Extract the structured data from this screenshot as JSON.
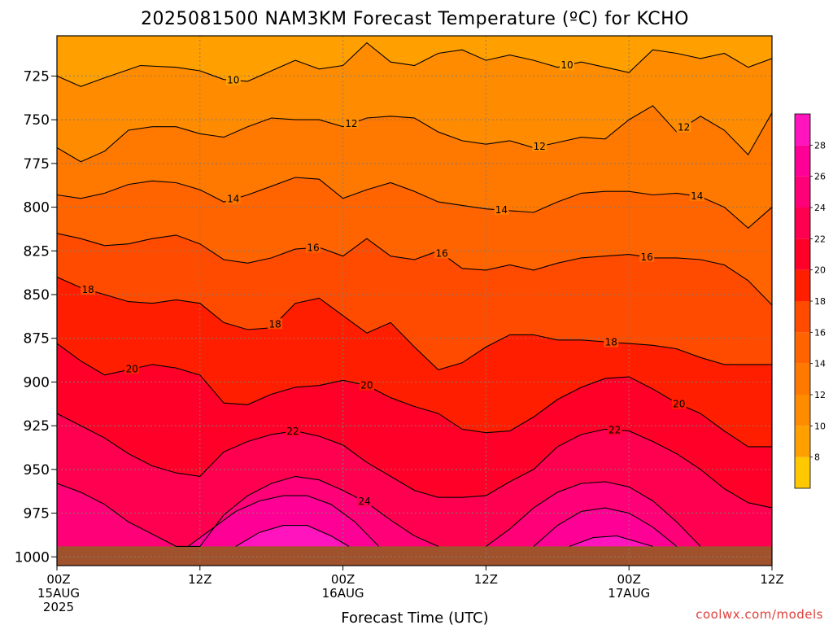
{
  "chart_data": {
    "type": "heatmap",
    "title": "2025081500 NAM3KM Forecast Temperature (ºC) for KCHO",
    "xlabel": "Forecast Time (UTC)",
    "ylabel": "",
    "credit": "coolwx.com/models",
    "x_range_hours": [
      0,
      60
    ],
    "x_ticks": [
      {
        "hour": 0,
        "line1": "00Z",
        "line2": "15AUG",
        "line3": "2025"
      },
      {
        "hour": 12,
        "line1": "12Z",
        "line2": "",
        "line3": ""
      },
      {
        "hour": 24,
        "line1": "00Z",
        "line2": "16AUG",
        "line3": ""
      },
      {
        "hour": 36,
        "line1": "12Z",
        "line2": "",
        "line3": ""
      },
      {
        "hour": 48,
        "line1": "00Z",
        "line2": "17AUG",
        "line3": ""
      },
      {
        "hour": 60,
        "line1": "12Z",
        "line2": "",
        "line3": ""
      }
    ],
    "y_axis": {
      "name": "pressure_hPa",
      "top": 702,
      "bottom": 1005
    },
    "y_ticks": [
      725,
      750,
      775,
      800,
      825,
      850,
      875,
      900,
      925,
      950,
      975,
      1000
    ],
    "grid": true,
    "colorbar": {
      "ticks": [
        8,
        10,
        12,
        14,
        16,
        18,
        20,
        22,
        24,
        26,
        28
      ],
      "levels": [
        6,
        8,
        10,
        12,
        14,
        16,
        18,
        20,
        22,
        24,
        26,
        28,
        30
      ],
      "colors": [
        "#ffc800",
        "#ffa000",
        "#ff8c00",
        "#ff7800",
        "#ff6400",
        "#ff4b00",
        "#ff1e00",
        "#ff0028",
        "#ff0050",
        "#ff0078",
        "#ff0096",
        "#ff14be"
      ]
    },
    "ground_level_hPa": 994,
    "ground_color": "#a0522d",
    "isotherms": [
      {
        "value": 10,
        "points": [
          [
            0,
            725
          ],
          [
            2,
            731
          ],
          [
            4,
            726
          ],
          [
            7,
            719
          ],
          [
            10,
            720
          ],
          [
            12,
            722
          ],
          [
            14,
            727
          ],
          [
            16,
            728
          ],
          [
            18,
            722
          ],
          [
            20,
            716
          ],
          [
            22,
            721
          ],
          [
            24,
            719
          ],
          [
            26,
            706
          ],
          [
            28,
            717
          ],
          [
            30,
            719
          ],
          [
            32,
            712
          ],
          [
            34,
            710
          ],
          [
            36,
            716
          ],
          [
            38,
            713
          ],
          [
            40,
            716
          ],
          [
            42,
            720
          ],
          [
            44,
            717
          ],
          [
            46,
            720
          ],
          [
            48,
            723
          ],
          [
            50,
            710
          ],
          [
            52,
            712
          ],
          [
            54,
            715
          ],
          [
            56,
            712
          ],
          [
            58,
            720
          ],
          [
            60,
            715
          ]
        ],
        "labels": [
          {
            "x": 14.8,
            "value": "10"
          },
          {
            "x": 42.8,
            "value": "10"
          }
        ]
      },
      {
        "value": 12,
        "points": [
          [
            0,
            766
          ],
          [
            2,
            774
          ],
          [
            4,
            768
          ],
          [
            6,
            756
          ],
          [
            8,
            754
          ],
          [
            10,
            754
          ],
          [
            12,
            758
          ],
          [
            14,
            760
          ],
          [
            16,
            754
          ],
          [
            18,
            749
          ],
          [
            20,
            750
          ],
          [
            22,
            750
          ],
          [
            24,
            754
          ],
          [
            26,
            749
          ],
          [
            28,
            748
          ],
          [
            30,
            749
          ],
          [
            32,
            757
          ],
          [
            34,
            762
          ],
          [
            36,
            764
          ],
          [
            38,
            762
          ],
          [
            40,
            766
          ],
          [
            42,
            763
          ],
          [
            44,
            760
          ],
          [
            46,
            761
          ],
          [
            48,
            750
          ],
          [
            50,
            742
          ],
          [
            52,
            757
          ],
          [
            54,
            748
          ],
          [
            56,
            756
          ],
          [
            58,
            770
          ],
          [
            60,
            746
          ]
        ],
        "labels": [
          {
            "x": 24.7,
            "value": "12"
          },
          {
            "x": 40.5,
            "value": "12"
          },
          {
            "x": 52.6,
            "value": "12"
          }
        ]
      },
      {
        "value": 14,
        "points": [
          [
            0,
            793
          ],
          [
            2,
            795
          ],
          [
            4,
            792
          ],
          [
            6,
            787
          ],
          [
            8,
            785
          ],
          [
            10,
            786
          ],
          [
            12,
            790
          ],
          [
            14,
            797
          ],
          [
            16,
            793
          ],
          [
            18,
            788
          ],
          [
            20,
            783
          ],
          [
            22,
            784
          ],
          [
            24,
            795
          ],
          [
            26,
            790
          ],
          [
            28,
            786
          ],
          [
            30,
            791
          ],
          [
            32,
            797
          ],
          [
            34,
            799
          ],
          [
            36,
            801
          ],
          [
            38,
            802
          ],
          [
            40,
            803
          ],
          [
            42,
            797
          ],
          [
            44,
            792
          ],
          [
            46,
            791
          ],
          [
            48,
            791
          ],
          [
            50,
            793
          ],
          [
            52,
            792
          ],
          [
            54,
            794
          ],
          [
            56,
            800
          ],
          [
            58,
            812
          ],
          [
            60,
            800
          ]
        ],
        "labels": [
          {
            "x": 14.8,
            "value": "14"
          },
          {
            "x": 37.3,
            "value": "14"
          },
          {
            "x": 53.7,
            "value": "14"
          }
        ]
      },
      {
        "value": 16,
        "points": [
          [
            0,
            815
          ],
          [
            2,
            818
          ],
          [
            4,
            822
          ],
          [
            6,
            821
          ],
          [
            8,
            818
          ],
          [
            10,
            816
          ],
          [
            12,
            821
          ],
          [
            14,
            830
          ],
          [
            16,
            832
          ],
          [
            18,
            829
          ],
          [
            20,
            824
          ],
          [
            22,
            823
          ],
          [
            24,
            828
          ],
          [
            26,
            818
          ],
          [
            28,
            828
          ],
          [
            30,
            830
          ],
          [
            32,
            825
          ],
          [
            34,
            835
          ],
          [
            36,
            836
          ],
          [
            38,
            833
          ],
          [
            40,
            836
          ],
          [
            42,
            832
          ],
          [
            44,
            829
          ],
          [
            46,
            828
          ],
          [
            48,
            827
          ],
          [
            50,
            829
          ],
          [
            52,
            829
          ],
          [
            54,
            830
          ],
          [
            56,
            833
          ],
          [
            58,
            842
          ],
          [
            60,
            856
          ]
        ],
        "labels": [
          {
            "x": 21.5,
            "value": "16"
          },
          {
            "x": 32.3,
            "value": "16"
          },
          {
            "x": 49.5,
            "value": "16"
          }
        ]
      },
      {
        "value": 18,
        "points": [
          [
            0,
            840
          ],
          [
            2,
            846
          ],
          [
            4,
            850
          ],
          [
            6,
            854
          ],
          [
            8,
            855
          ],
          [
            10,
            853
          ],
          [
            12,
            855
          ],
          [
            14,
            866
          ],
          [
            16,
            870
          ],
          [
            18,
            869
          ],
          [
            20,
            855
          ],
          [
            22,
            852
          ],
          [
            24,
            862
          ],
          [
            26,
            872
          ],
          [
            28,
            866
          ],
          [
            30,
            880
          ],
          [
            32,
            893
          ],
          [
            34,
            889
          ],
          [
            36,
            880
          ],
          [
            38,
            873
          ],
          [
            40,
            873
          ],
          [
            42,
            876
          ],
          [
            44,
            876
          ],
          [
            46,
            877
          ],
          [
            48,
            878
          ],
          [
            50,
            879
          ],
          [
            52,
            881
          ],
          [
            54,
            886
          ],
          [
            56,
            890
          ],
          [
            58,
            890
          ],
          [
            60,
            890
          ]
        ],
        "labels": [
          {
            "x": 2.6,
            "value": "18"
          },
          {
            "x": 18.3,
            "value": "18"
          },
          {
            "x": 46.5,
            "value": "18"
          }
        ]
      },
      {
        "value": 20,
        "points": [
          [
            0,
            878
          ],
          [
            2,
            888
          ],
          [
            4,
            896
          ],
          [
            6,
            893
          ],
          [
            8,
            890
          ],
          [
            10,
            892
          ],
          [
            12,
            896
          ],
          [
            14,
            912
          ],
          [
            16,
            913
          ],
          [
            18,
            907
          ],
          [
            20,
            903
          ],
          [
            22,
            902
          ],
          [
            24,
            899
          ],
          [
            26,
            902
          ],
          [
            28,
            909
          ],
          [
            30,
            914
          ],
          [
            32,
            918
          ],
          [
            34,
            927
          ],
          [
            36,
            929
          ],
          [
            38,
            928
          ],
          [
            40,
            920
          ],
          [
            42,
            910
          ],
          [
            44,
            903
          ],
          [
            46,
            898
          ],
          [
            48,
            897
          ],
          [
            50,
            904
          ],
          [
            52,
            912
          ],
          [
            54,
            918
          ],
          [
            56,
            928
          ],
          [
            58,
            937
          ],
          [
            60,
            937
          ]
        ],
        "labels": [
          {
            "x": 6.3,
            "value": "20"
          },
          {
            "x": 26.0,
            "value": "20"
          },
          {
            "x": 52.2,
            "value": "20"
          }
        ]
      },
      {
        "value": 22,
        "points": [
          [
            0,
            918
          ],
          [
            2,
            925
          ],
          [
            4,
            932
          ],
          [
            6,
            941
          ],
          [
            8,
            948
          ],
          [
            10,
            952
          ],
          [
            12,
            954
          ],
          [
            14,
            940
          ],
          [
            16,
            934
          ],
          [
            18,
            930
          ],
          [
            20,
            928
          ],
          [
            22,
            931
          ],
          [
            24,
            936
          ],
          [
            26,
            946
          ],
          [
            28,
            954
          ],
          [
            30,
            962
          ],
          [
            32,
            966
          ],
          [
            34,
            966
          ],
          [
            36,
            965
          ],
          [
            38,
            957
          ],
          [
            40,
            950
          ],
          [
            42,
            937
          ],
          [
            44,
            930
          ],
          [
            46,
            927
          ],
          [
            48,
            928
          ],
          [
            50,
            934
          ],
          [
            52,
            941
          ],
          [
            54,
            950
          ],
          [
            56,
            961
          ],
          [
            58,
            969
          ],
          [
            60,
            972
          ]
        ],
        "labels": [
          {
            "x": 19.8,
            "value": "22"
          },
          {
            "x": 46.8,
            "value": "22"
          }
        ]
      },
      {
        "value": 24,
        "points": [
          [
            0,
            958
          ],
          [
            2,
            963
          ],
          [
            4,
            970
          ],
          [
            6,
            980
          ],
          [
            8,
            987
          ],
          [
            10,
            994
          ],
          [
            12,
            994
          ],
          [
            14,
            976
          ],
          [
            16,
            965
          ],
          [
            18,
            958
          ],
          [
            20,
            954
          ],
          [
            22,
            956
          ],
          [
            24,
            962
          ],
          [
            26,
            969
          ],
          [
            28,
            979
          ],
          [
            30,
            988
          ],
          [
            32,
            994
          ]
        ],
        "labels": [
          {
            "x": 25.8,
            "value": "24"
          }
        ]
      },
      {
        "value": 24,
        "points": [
          [
            36,
            994
          ],
          [
            38,
            984
          ],
          [
            40,
            972
          ],
          [
            42,
            963
          ],
          [
            44,
            958
          ],
          [
            46,
            957
          ],
          [
            48,
            960
          ],
          [
            50,
            968
          ],
          [
            52,
            980
          ],
          [
            54,
            994
          ]
        ],
        "labels": []
      },
      {
        "value": 26,
        "points": [
          [
            11,
            994
          ],
          [
            13,
            984
          ],
          [
            15,
            974
          ],
          [
            17,
            968
          ],
          [
            19,
            965
          ],
          [
            21,
            965
          ],
          [
            23,
            970
          ],
          [
            25,
            980
          ],
          [
            27,
            994
          ]
        ],
        "labels": []
      },
      {
        "value": 26,
        "points": [
          [
            40,
            994
          ],
          [
            42,
            982
          ],
          [
            44,
            974
          ],
          [
            46,
            972
          ],
          [
            48,
            975
          ],
          [
            50,
            983
          ],
          [
            52,
            994
          ]
        ],
        "labels": []
      },
      {
        "value": 28,
        "points": [
          [
            15,
            994
          ],
          [
            17,
            986
          ],
          [
            19,
            982
          ],
          [
            21,
            982
          ],
          [
            23,
            988
          ],
          [
            24.5,
            994
          ]
        ],
        "labels": []
      },
      {
        "value": 28,
        "points": [
          [
            43,
            994
          ],
          [
            45,
            989
          ],
          [
            47,
            988
          ],
          [
            49,
            992
          ],
          [
            50,
            994
          ]
        ],
        "labels": []
      }
    ]
  }
}
